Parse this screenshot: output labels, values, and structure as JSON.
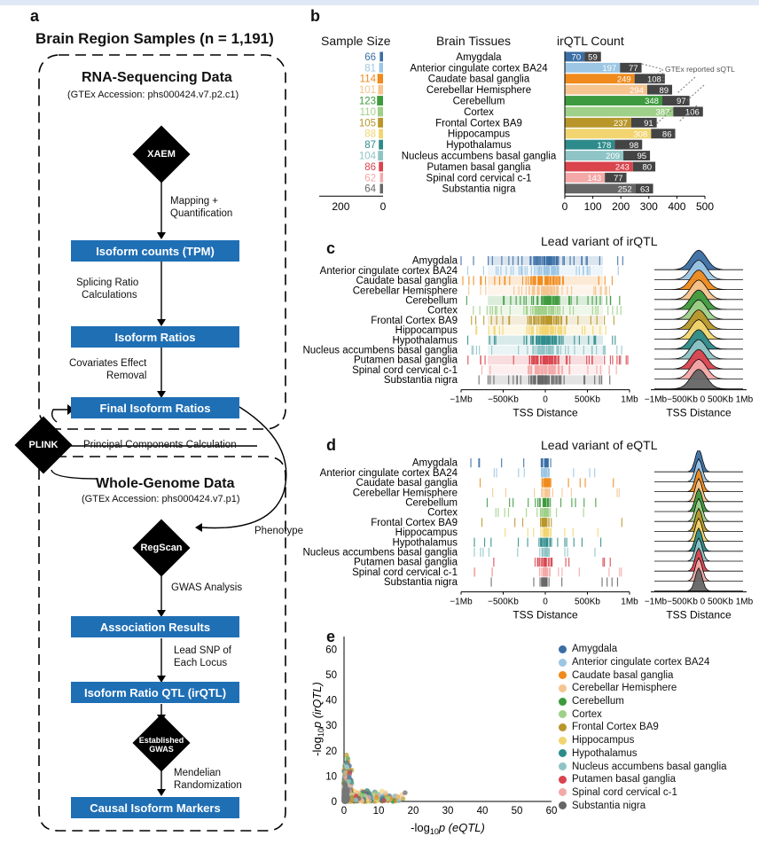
{
  "panels": {
    "a": "a",
    "b": "b",
    "c": "c",
    "d": "d",
    "e": "e"
  },
  "flow": {
    "title": "Brain Region Samples (n = 1,191)",
    "rna_title": "RNA-Sequencing Data",
    "rna_accession": "(GTEx Accession: phs000424.v7.p2.c1)",
    "xaem": "XAEM",
    "mapping": "Mapping +",
    "quantification": "Quantification",
    "isoform_counts": "Isoform counts (TPM)",
    "splicing1": "Splicing Ratio",
    "splicing2": "Calculations",
    "isoform_ratios": "Isoform Ratios",
    "covariates1": "Covariates Effect",
    "covariates2": "Removal",
    "final_ratios": "Final Isoform Ratios",
    "plink": "PLINK",
    "pcc": "Principal Components Calculation",
    "wgs_title": "Whole-Genome Data",
    "wgs_accession": "(GTEx Accession: phs000424.v7.p1)",
    "phenotype": "Phenotype",
    "regscan": "RegScan",
    "gwas_analysis": "GWAS Analysis",
    "association": "Association Results",
    "lead1": "Lead SNP of",
    "lead2": "Each Locus",
    "irqtl_box": "Isoform Ratio QTL (irQTL)",
    "established1": "Established",
    "established2": "GWAS",
    "mendelian1": "Mendelian",
    "mendelian2": "Randomization",
    "causal": "Causal Isoform Markers"
  },
  "tissues": [
    "Amygdala",
    "Anterior cingulate cortex BA24",
    "Caudate basal ganglia",
    "Cerebellar Hemisphere",
    "Cerebellum",
    "Cortex",
    "Frontal Cortex BA9",
    "Hippocampus",
    "Hypothalamus",
    "Nucleus accumbens basal ganglia",
    "Putamen basal ganglia",
    "Spinal cord cervical c-1",
    "Substantia nigra"
  ],
  "tissue_colors": [
    "#3a6ea5",
    "#9cc6e4",
    "#f08a1c",
    "#f5c48f",
    "#3e9a3e",
    "#9fd089",
    "#b8962a",
    "#f2d570",
    "#2e8b8b",
    "#8fc4c6",
    "#d9444d",
    "#f4a8a8",
    "#666666"
  ],
  "chart_data": [
    {
      "type": "bar",
      "panel": "b",
      "headers": {
        "sample_size": "Sample  Size",
        "tissues": "Brain Tissues",
        "irqtl": "irQTL Count"
      },
      "sample_size": [
        66,
        81,
        114,
        101,
        123,
        110,
        105,
        88,
        87,
        104,
        86,
        62,
        64
      ],
      "irqtl_novel": [
        70,
        197,
        249,
        294,
        348,
        387,
        237,
        308,
        178,
        209,
        243,
        143,
        252
      ],
      "irqtl_gtex": [
        59,
        77,
        108,
        89,
        97,
        106,
        91,
        86,
        98,
        95,
        80,
        77,
        63
      ],
      "annotation": "GTEx reported sQTL",
      "left_ticks": [
        "200",
        "0"
      ],
      "right_ticks": [
        "0",
        "100",
        "200",
        "300",
        "400",
        "500"
      ]
    },
    {
      "type": "scatter",
      "panel": "c",
      "title": "Lead variant of irQTL",
      "xlabel": "TSS Distance",
      "xticks": [
        "−1Mb",
        "−500Kb",
        "0",
        "500Kb",
        "1Mb"
      ],
      "density_xticks": "−1Mb−500Kb 0 500Kb 1Mb",
      "density_xlabel": "TSS Distance"
    },
    {
      "type": "scatter",
      "panel": "d",
      "title": "Lead variant of eQTL",
      "xlabel": "TSS Distance",
      "xticks": [
        "−1Mb",
        "−500Kb",
        "0",
        "500Kb",
        "1Mb"
      ],
      "density_xticks": "−1Mb−500Kb 0 500Kb 1Mb",
      "density_xlabel": "TSS Distance"
    },
    {
      "type": "scatter",
      "panel": "e",
      "xlabel_main": "-log",
      "xlabel_sub": "10",
      "xlabel_rest": "p (eQTL)",
      "ylabel_main": "-log",
      "ylabel_sub": "10",
      "ylabel_rest": "p (irQTL)",
      "xlim": [
        0,
        60
      ],
      "ylim": [
        0,
        65
      ],
      "xticks": [
        "0",
        "10",
        "20",
        "30",
        "40",
        "50",
        "60"
      ],
      "yticks": [
        "0",
        "10",
        "20",
        "30",
        "40",
        "50",
        "60"
      ]
    }
  ]
}
